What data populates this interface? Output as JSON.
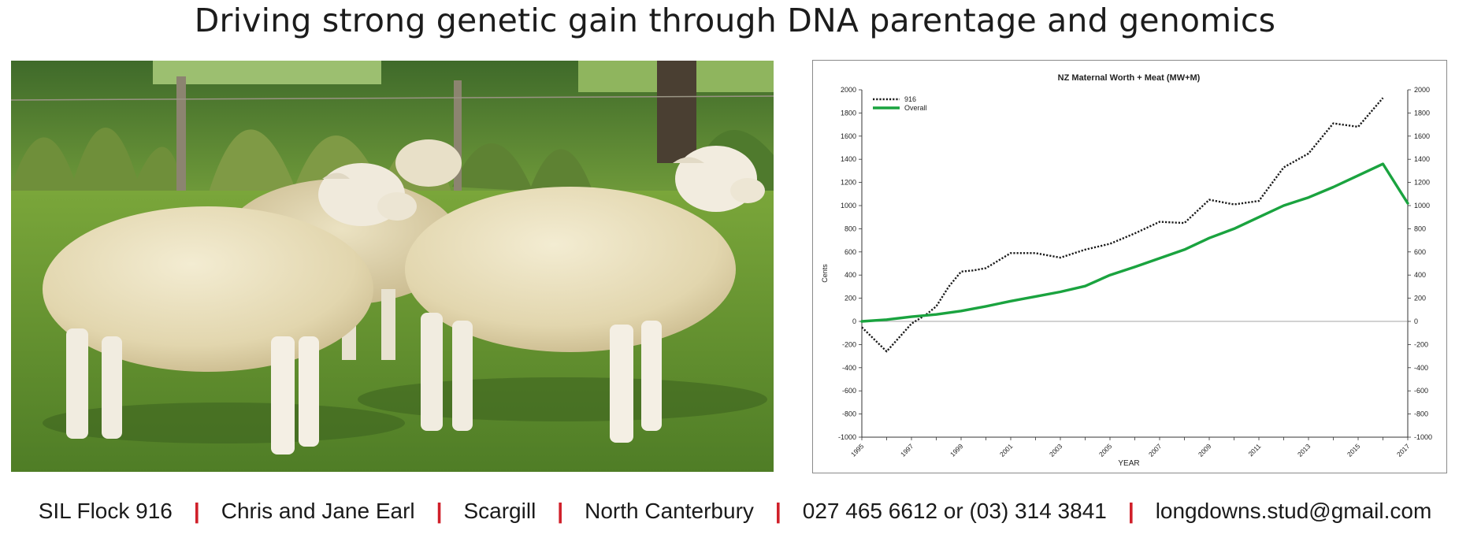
{
  "headline": "Driving strong genetic gain through DNA parentage and genomics",
  "footer": {
    "items": [
      "SIL Flock 916",
      "Chris and Jane Earl",
      "Scargill",
      "North Canterbury",
      "027 465 6612 or (03) 314 3841",
      "longdowns.stud@gmail.com"
    ],
    "separator": "|",
    "separator_color": "#d0202a"
  },
  "photo": {
    "subject": "three-sheep-on-grass"
  },
  "chart_data": {
    "type": "line",
    "title": "NZ Maternal Worth + Meat (MW+M)",
    "xlabel": "YEAR",
    "ylabel": "Cents",
    "xlim": [
      1995,
      2017
    ],
    "ylim": [
      -1000,
      2000
    ],
    "y_ticks": [
      -1000,
      -800,
      -600,
      -400,
      -200,
      0,
      200,
      400,
      600,
      800,
      1000,
      1200,
      1400,
      1600,
      1800,
      2000
    ],
    "x_tick_labels": [
      "1995",
      "1997",
      "1999",
      "2001",
      "2003",
      "2005",
      "2007",
      "2009",
      "2011",
      "2013",
      "2015",
      "2017"
    ],
    "grid": false,
    "legend_position": "top-left",
    "series": [
      {
        "name": "916",
        "color": "#1a1a1a",
        "style": "dotted",
        "x": [
          1995,
          1996,
          1997,
          1997.6,
          1998,
          1998.5,
          1999,
          1999.5,
          2000,
          2001,
          2002,
          2003,
          2004,
          2005,
          2006,
          2007,
          2008,
          2009,
          2010,
          2011,
          2012,
          2013,
          2014,
          2015,
          2016
        ],
        "values": [
          -50,
          -260,
          -20,
          60,
          130,
          300,
          430,
          440,
          460,
          590,
          590,
          550,
          620,
          670,
          760,
          860,
          850,
          1050,
          1010,
          1040,
          1330,
          1450,
          1710,
          1680,
          1930
        ]
      },
      {
        "name": "Overall",
        "color": "#1aa33f",
        "style": "solid",
        "x": [
          1995,
          1996,
          1997,
          1998,
          1999,
          2000,
          2001,
          2002,
          2003,
          2004,
          2005,
          2006,
          2007,
          2008,
          2009,
          2010,
          2011,
          2012,
          2013,
          2014,
          2015,
          2016,
          2017
        ],
        "values": [
          0,
          15,
          40,
          60,
          90,
          130,
          175,
          215,
          255,
          305,
          400,
          470,
          545,
          620,
          720,
          800,
          900,
          1000,
          1070,
          1160,
          1260,
          1360,
          1020
        ]
      }
    ]
  }
}
